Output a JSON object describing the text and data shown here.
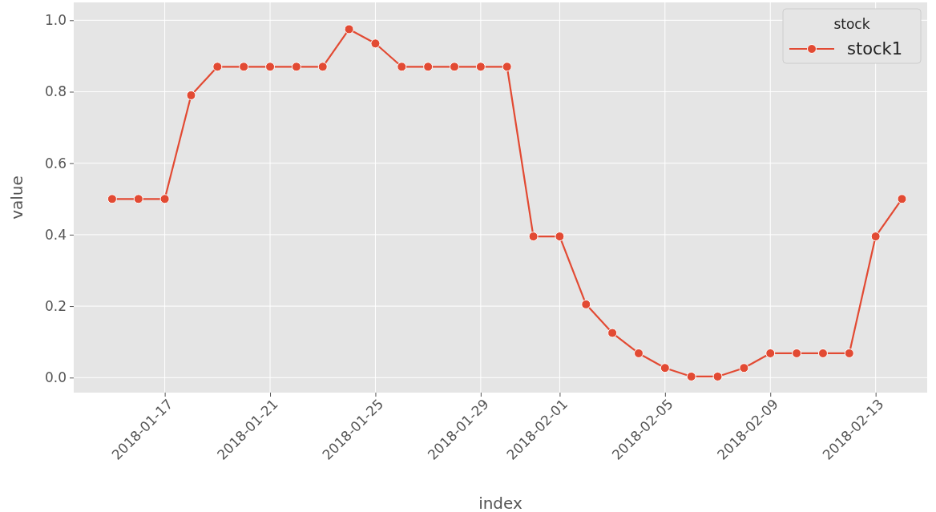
{
  "chart_data": {
    "type": "line",
    "xlabel": "index",
    "ylabel": "value",
    "legend_title": "stock",
    "x": [
      "2018-01-15",
      "2018-01-16",
      "2018-01-17",
      "2018-01-18",
      "2018-01-19",
      "2018-01-20",
      "2018-01-21",
      "2018-01-22",
      "2018-01-23",
      "2018-01-24",
      "2018-01-25",
      "2018-01-26",
      "2018-01-27",
      "2018-01-28",
      "2018-01-29",
      "2018-01-30",
      "2018-01-31",
      "2018-02-01",
      "2018-02-02",
      "2018-02-03",
      "2018-02-04",
      "2018-02-05",
      "2018-02-06",
      "2018-02-07",
      "2018-02-08",
      "2018-02-09",
      "2018-02-10",
      "2018-02-11",
      "2018-02-12",
      "2018-02-13",
      "2018-02-14"
    ],
    "series": [
      {
        "name": "stock1",
        "color": "#e24a33",
        "values": [
          0.5,
          0.5,
          0.5,
          0.79,
          0.87,
          0.87,
          0.87,
          0.87,
          0.87,
          0.975,
          0.935,
          0.87,
          0.87,
          0.87,
          0.87,
          0.87,
          0.395,
          0.395,
          0.205,
          0.125,
          0.068,
          0.027,
          0.003,
          0.003,
          0.027,
          0.068,
          0.068,
          0.068,
          0.068,
          0.395,
          0.5
        ]
      }
    ],
    "xlim": [
      "2018-01-13T13:00",
      "2018-02-14T23:00"
    ],
    "xticks": [
      "2018-01-17",
      "2018-01-21",
      "2018-01-25",
      "2018-01-29",
      "2018-02-01",
      "2018-02-05",
      "2018-02-09",
      "2018-02-13"
    ],
    "ylim": [
      -0.042,
      1.05
    ],
    "yticks": [
      {
        "value": 0,
        "label": "0.0"
      },
      {
        "value": 0.2,
        "label": "0.2"
      },
      {
        "value": 0.4,
        "label": "0.4"
      },
      {
        "value": 0.6,
        "label": "0.6"
      },
      {
        "value": 0.8,
        "label": "0.8"
      },
      {
        "value": 1,
        "label": "1.0"
      }
    ],
    "grid": true,
    "legend": "top right",
    "marker": "circle",
    "line_style": "solid"
  }
}
